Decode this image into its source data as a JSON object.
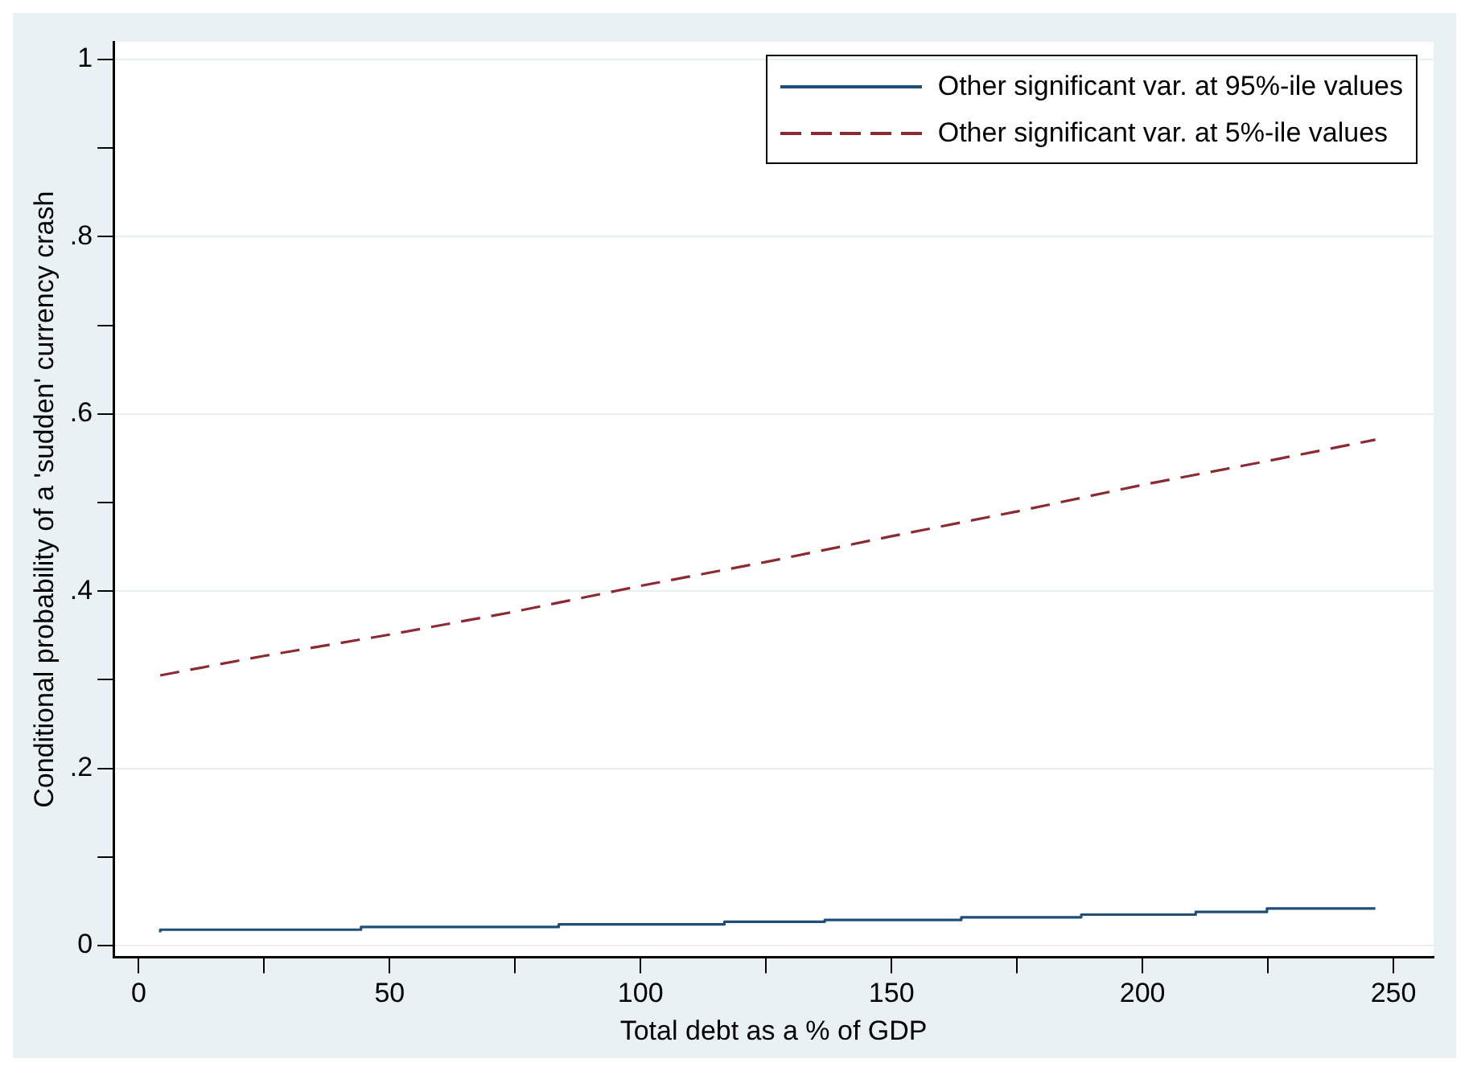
{
  "chart_data": {
    "type": "line",
    "xlabel": "Total debt as a % of GDP",
    "ylabel": "Conditional probability of a 'sudden' currency crash",
    "series": [
      {
        "name": "Other significant var. at 95%-ile values",
        "type": "step",
        "color": "#1f4e79",
        "line_style": "solid",
        "x": [
          4.3,
          44.3,
          83.7,
          116.7,
          136.7,
          163.9,
          187.8,
          210.6,
          224.8,
          243.2,
          246.4
        ],
        "values": [
          0.015,
          0.018,
          0.021,
          0.024,
          0.027,
          0.029,
          0.032,
          0.035,
          0.038,
          0.042,
          0.042
        ]
      },
      {
        "name": "Other significant var. at 5%-ile values",
        "type": "line",
        "color": "#8b2a33",
        "line_style": "dashed",
        "x": [
          4.3,
          25,
          50,
          75,
          100,
          125,
          150,
          175,
          200,
          225,
          246.4
        ],
        "values": [
          0.305,
          0.327,
          0.351,
          0.377,
          0.406,
          0.433,
          0.462,
          0.49,
          0.52,
          0.547,
          0.571
        ]
      }
    ],
    "xlim": [
      -5,
      258
    ],
    "xticks": [
      0,
      {
        "value": 25,
        "label": null
      },
      50,
      {
        "value": 75,
        "label": null
      },
      100,
      {
        "value": 125,
        "label": null
      },
      150,
      {
        "value": 175,
        "label": null
      },
      200,
      {
        "value": 225,
        "label": null
      },
      250
    ],
    "ylim": [
      -0.013,
      1.02
    ],
    "yticks": [
      {
        "value": 0,
        "label": "0"
      },
      {
        "value": 0.1,
        "label": null
      },
      {
        "value": 0.2,
        "label": ".2"
      },
      {
        "value": 0.3,
        "label": null
      },
      {
        "value": 0.4,
        "label": ".4"
      },
      {
        "value": 0.5,
        "label": null
      },
      {
        "value": 0.6,
        "label": ".6"
      },
      {
        "value": 0.7,
        "label": null
      },
      {
        "value": 0.8,
        "label": ".8"
      },
      {
        "value": 0.9,
        "label": null
      },
      {
        "value": 1,
        "label": "1"
      }
    ],
    "grid": "y",
    "legend": "top right",
    "marker": "none"
  }
}
